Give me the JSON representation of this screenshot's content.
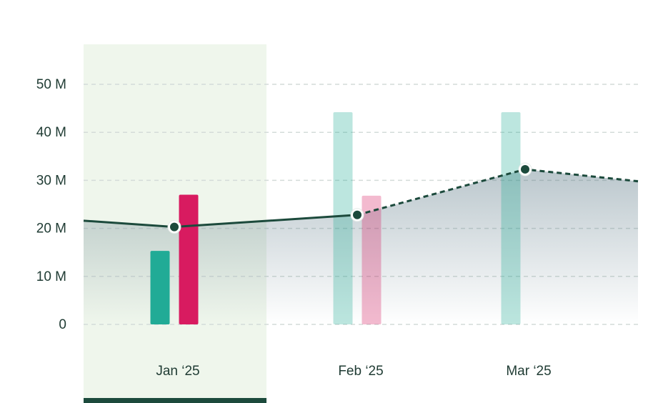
{
  "chart_data": {
    "type": "bar",
    "categories": [
      "Jan ‘25",
      "Feb ‘25",
      "Mar ‘25"
    ],
    "y_ticks": [
      "0",
      "10 M",
      "20 M",
      "30 M",
      "40 M",
      "50 M"
    ],
    "y_tick_values": [
      0,
      10,
      20,
      30,
      40,
      50
    ],
    "ylim": [
      0,
      50
    ],
    "grid": true,
    "selected_category": "Jan ‘25",
    "series": [
      {
        "kind": "bar",
        "values": [
          15.3,
          44.2,
          44.2
        ],
        "color": "#21ab96"
      },
      {
        "kind": "bar",
        "values": [
          27.0,
          26.8,
          null
        ],
        "color": "#d81b60"
      },
      {
        "kind": "line",
        "values": [
          20.3,
          22.8,
          32.3
        ],
        "x_left_value": 21.6,
        "x_right_value": 29.8,
        "color": "#1c4a3c"
      }
    ],
    "bar_projected_opacity": 0.3,
    "line_dashed_from_category": "Feb ‘25"
  }
}
